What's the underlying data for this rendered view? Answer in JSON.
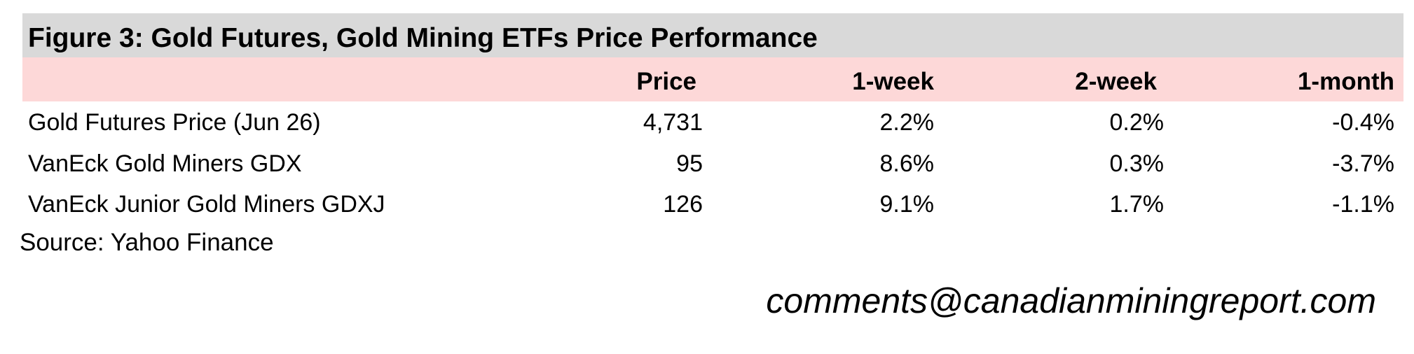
{
  "title": "Figure 3: Gold Futures, Gold Mining ETFs Price Performance",
  "table": {
    "columns": [
      "Price",
      "1-week",
      "2-week",
      "1-month"
    ],
    "rows": [
      [
        "Gold Futures Price (Jun 26)",
        "4,731",
        "2.2%",
        "0.2%",
        "-0.4%"
      ],
      [
        "VanEck Gold Miners GDX",
        "95",
        "8.6%",
        "0.3%",
        "-3.7%"
      ],
      [
        "VanEck Junior Gold Miners GDXJ",
        "126",
        "9.1%",
        "1.7%",
        "-1.1%"
      ]
    ]
  },
  "source": "Source: Yahoo Finance",
  "email": "comments@canadianminingreport.com"
}
